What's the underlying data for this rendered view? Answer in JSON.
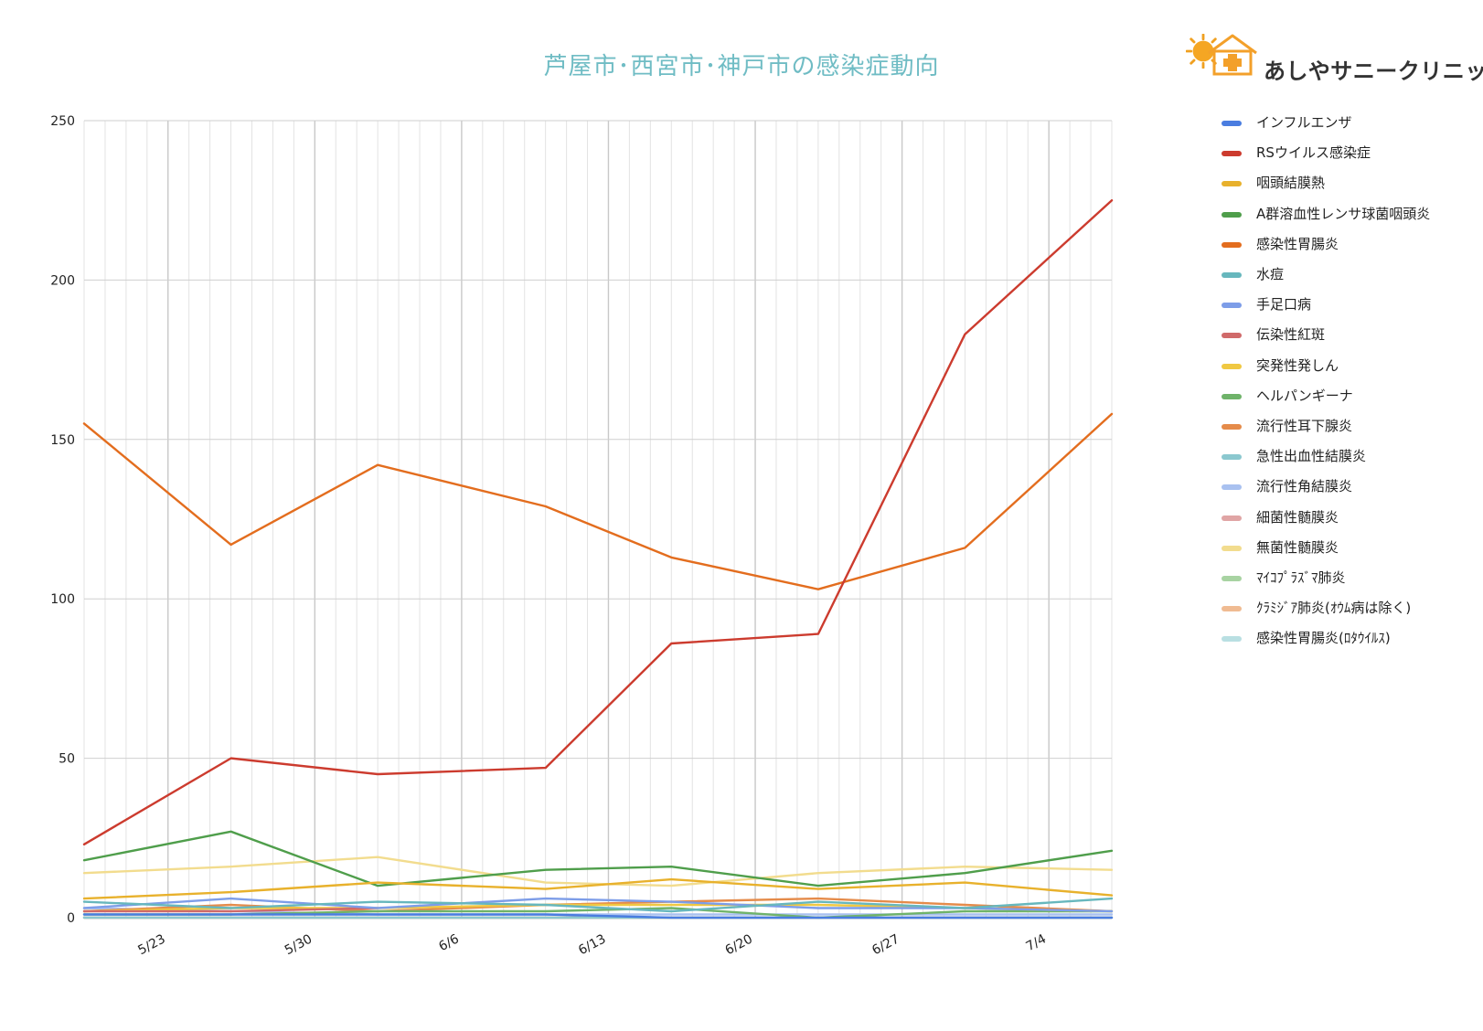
{
  "title": "芦屋市･西宮市･神戸市の感染症動向",
  "logo": {
    "text": "あしやサニークリニック",
    "mark_text": "Sunny"
  },
  "chart_data": {
    "type": "line",
    "title": "芦屋市･西宮市･神戸市の感染症動向",
    "xlabel": "",
    "ylabel": "",
    "ylim": [
      0,
      250
    ],
    "yticks": [
      0,
      50,
      100,
      150,
      200,
      250
    ],
    "x_range": [
      "5/19",
      "7/7"
    ],
    "x_tick_labels": [
      "5/23",
      "5/30",
      "6/6",
      "6/13",
      "6/20",
      "6/27",
      "7/4"
    ],
    "x": [
      "5/19",
      "5/26",
      "6/2",
      "6/10",
      "6/16",
      "6/23",
      "6/30",
      "7/7"
    ],
    "grid": true,
    "legend_position": "right",
    "series": [
      {
        "name": "インフルエンザ",
        "color": "#4a7de0",
        "values": [
          1,
          1,
          1,
          1,
          0,
          0,
          0,
          0
        ]
      },
      {
        "name": "RSウイルス感染症",
        "color": "#cc3b2e",
        "values": [
          23,
          50,
          45,
          47,
          86,
          89,
          183,
          225
        ]
      },
      {
        "name": "咽頭結膜熱",
        "color": "#e8b12c",
        "values": [
          6,
          8,
          11,
          9,
          12,
          9,
          11,
          7
        ]
      },
      {
        "name": "A群溶血性レンサ球菌咽頭炎",
        "color": "#4f9e4b",
        "values": [
          18,
          27,
          10,
          15,
          16,
          10,
          14,
          21
        ]
      },
      {
        "name": "感染性胃腸炎",
        "color": "#e36d1e",
        "values": [
          155,
          117,
          142,
          129,
          113,
          103,
          116,
          158
        ]
      },
      {
        "name": "水痘",
        "color": "#67b7bd",
        "values": [
          5,
          3,
          5,
          4,
          2,
          5,
          3,
          6
        ]
      },
      {
        "name": "手足口病",
        "color": "#7d9de8",
        "values": [
          3,
          6,
          3,
          6,
          5,
          3,
          3,
          2
        ]
      },
      {
        "name": "伝染性紅斑",
        "color": "#d06a6a",
        "values": [
          2,
          2,
          3,
          null,
          null,
          null,
          null,
          null
        ]
      },
      {
        "name": "突発性発しん",
        "color": "#f0c842",
        "values": [
          2,
          3,
          3,
          4,
          4,
          4,
          3,
          2
        ]
      },
      {
        "name": "ヘルパンギーナ",
        "color": "#6fb36a",
        "values": [
          1,
          1,
          2,
          2,
          3,
          0,
          2,
          2
        ]
      },
      {
        "name": "流行性耳下腺炎",
        "color": "#e58b4a",
        "values": [
          2,
          4,
          2,
          4,
          5,
          6,
          4,
          2
        ]
      },
      {
        "name": "急性出血性結膜炎",
        "color": "#8bc8cf",
        "values": [
          0,
          0,
          0,
          0,
          0,
          0,
          0,
          0
        ]
      },
      {
        "name": "流行性角結膜炎",
        "color": "#a9c1f0",
        "values": [
          3,
          2,
          1,
          1,
          1,
          1,
          1,
          1
        ]
      },
      {
        "name": "細菌性髄膜炎",
        "color": "#e0a5a5",
        "values": [
          0,
          0,
          0,
          0,
          0,
          0,
          0,
          0
        ]
      },
      {
        "name": "無菌性髄膜炎",
        "color": "#f2dc8e",
        "values": [
          14,
          16,
          19,
          11,
          10,
          14,
          16,
          15
        ]
      },
      {
        "name": "ﾏｲｺﾌﾟﾗｽﾞﾏ肺炎",
        "color": "#a8d3a2",
        "values": [
          0,
          0,
          0,
          0,
          0,
          0,
          0,
          0
        ]
      },
      {
        "name": "ｸﾗﾐｼﾞｱ肺炎(ｵｳﾑ病は除く)",
        "color": "#f0bb92",
        "values": [
          0,
          0,
          0,
          0,
          0,
          0,
          0,
          0
        ]
      },
      {
        "name": "感染性胃腸炎(ﾛﾀｳｲﾙｽ)",
        "color": "#b9dfe2",
        "values": [
          0,
          0,
          0,
          0,
          0,
          0,
          0,
          0
        ]
      }
    ]
  }
}
